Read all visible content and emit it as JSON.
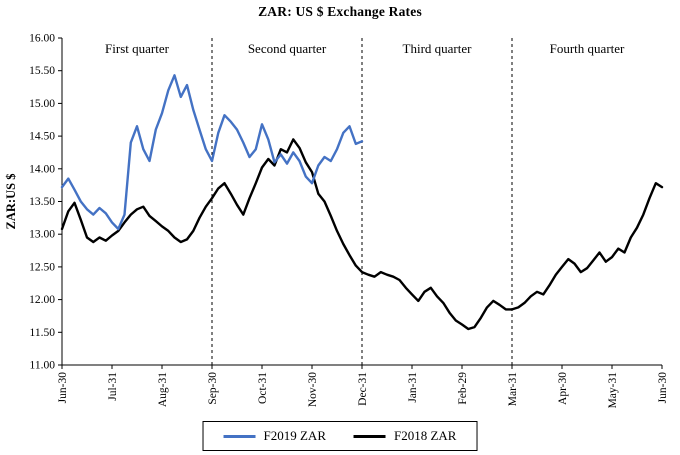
{
  "title": "ZAR: US $ Exchange Rates",
  "y_axis": {
    "label": "ZAR:US $",
    "min": 11.0,
    "max": 16.0,
    "step": 0.5
  },
  "x_axis": {
    "tick_labels": [
      "Jun-30",
      "Jul-31",
      "Aug-31",
      "Sep-30",
      "Oct-31",
      "Nov-30",
      "Dec-31",
      "Jan-31",
      "Feb-29",
      "Mar-31",
      "Apr-30",
      "May-31",
      "Jun-30"
    ]
  },
  "quarter_labels": [
    {
      "label": "First quarter",
      "center_month": 1.5
    },
    {
      "label": "Second quarter",
      "center_month": 4.5
    },
    {
      "label": "Third quarter",
      "center_month": 7.5
    },
    {
      "label": "Fourth quarter",
      "center_month": 10.5
    }
  ],
  "dividers_months": [
    3,
    6,
    9
  ],
  "legend": {
    "items": [
      {
        "label": "F2019 ZAR",
        "color": "#4472C4"
      },
      {
        "label": "F2018 ZAR",
        "color": "#000000"
      }
    ]
  },
  "chart_data": {
    "type": "line",
    "title": "ZAR: US $ Exchange Rates",
    "xlabel": "",
    "ylabel": "ZAR:US $",
    "ylim": [
      11.0,
      16.0
    ],
    "y_tick_step": 0.5,
    "x_tick_labels": [
      "Jun-30",
      "Jul-31",
      "Aug-31",
      "Sep-30",
      "Oct-31",
      "Nov-30",
      "Dec-31",
      "Jan-31",
      "Feb-29",
      "Mar-31",
      "Apr-30",
      "May-31",
      "Jun-30"
    ],
    "x_unit": "months after first Jun-30 tick; axis ticks at integer months 0-12",
    "legend_position": "bottom",
    "grid": false,
    "series": [
      {
        "name": "F2019 ZAR",
        "color": "#4472C4",
        "x0": 0,
        "dx": 0.125,
        "y": [
          13.72,
          13.85,
          13.68,
          13.5,
          13.38,
          13.3,
          13.4,
          13.32,
          13.18,
          13.08,
          13.3,
          14.4,
          14.65,
          14.3,
          14.12,
          14.6,
          14.85,
          15.2,
          15.43,
          15.1,
          15.28,
          14.9,
          14.6,
          14.3,
          14.12,
          14.55,
          14.82,
          14.72,
          14.6,
          14.4,
          14.18,
          14.3,
          14.68,
          14.45,
          14.1,
          14.22,
          14.08,
          14.25,
          14.12,
          13.88,
          13.78,
          14.05,
          14.18,
          14.12,
          14.3,
          14.55,
          14.65,
          14.38,
          14.42
        ]
      },
      {
        "name": "F2018 ZAR",
        "color": "#000000",
        "x0": 0,
        "dx": 0.125,
        "y": [
          13.08,
          13.35,
          13.48,
          13.22,
          12.95,
          12.88,
          12.95,
          12.9,
          12.98,
          13.05,
          13.18,
          13.3,
          13.38,
          13.42,
          13.28,
          13.2,
          13.12,
          13.05,
          12.95,
          12.88,
          12.92,
          13.05,
          13.25,
          13.42,
          13.55,
          13.7,
          13.78,
          13.62,
          13.45,
          13.3,
          13.55,
          13.78,
          14.02,
          14.15,
          14.05,
          14.3,
          14.25,
          14.45,
          14.32,
          14.1,
          13.95,
          13.62,
          13.5,
          13.28,
          13.05,
          12.85,
          12.68,
          12.52,
          12.42,
          12.38,
          12.35,
          12.42,
          12.38,
          12.35,
          12.3,
          12.18,
          12.08,
          11.98,
          12.12,
          12.18,
          12.05,
          11.95,
          11.8,
          11.68,
          11.62,
          11.55,
          11.58,
          11.72,
          11.88,
          11.98,
          11.92,
          11.85,
          11.85,
          11.88,
          11.95,
          12.05,
          12.12,
          12.08,
          12.22,
          12.38,
          12.5,
          12.62,
          12.55,
          12.42,
          12.48,
          12.6,
          12.72,
          12.58,
          12.65,
          12.78,
          12.72,
          12.95,
          13.1,
          13.3,
          13.55,
          13.78,
          13.72
        ]
      }
    ]
  }
}
